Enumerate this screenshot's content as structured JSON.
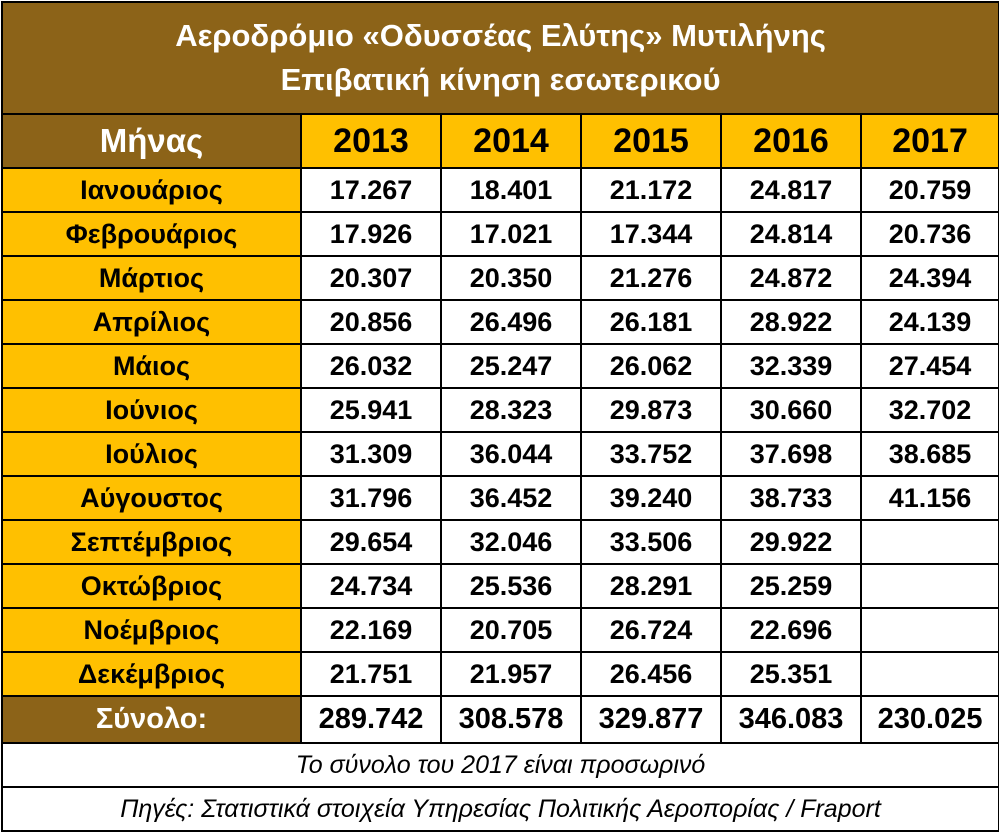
{
  "title_line1": "Αεροδρόμιο «Οδυσσέας Ελύτης» Μυτιλήνης",
  "title_line2": "Επιβατική κίνηση εσωτερικού",
  "header": {
    "month_label": "Μήνας",
    "years": [
      "2013",
      "2014",
      "2015",
      "2016",
      "2017"
    ]
  },
  "rows": [
    {
      "month": "Ιανουάριος",
      "values": [
        "17.267",
        "18.401",
        "21.172",
        "24.817",
        "20.759"
      ]
    },
    {
      "month": "Φεβρουάριος",
      "values": [
        "17.926",
        "17.021",
        "17.344",
        "24.814",
        "20.736"
      ]
    },
    {
      "month": "Μάρτιος",
      "values": [
        "20.307",
        "20.350",
        "21.276",
        "24.872",
        "24.394"
      ]
    },
    {
      "month": "Απρίλιος",
      "values": [
        "20.856",
        "26.496",
        "26.181",
        "28.922",
        "24.139"
      ]
    },
    {
      "month": "Μάιος",
      "values": [
        "26.032",
        "25.247",
        "26.062",
        "32.339",
        "27.454"
      ]
    },
    {
      "month": "Ιούνιος",
      "values": [
        "25.941",
        "28.323",
        "29.873",
        "30.660",
        "32.702"
      ]
    },
    {
      "month": "Ιούλιος",
      "values": [
        "31.309",
        "36.044",
        "33.752",
        "37.698",
        "38.685"
      ]
    },
    {
      "month": "Αύγουστος",
      "values": [
        "31.796",
        "36.452",
        "39.240",
        "38.733",
        "41.156"
      ]
    },
    {
      "month": "Σεπτέμβριος",
      "values": [
        "29.654",
        "32.046",
        "33.506",
        "29.922",
        ""
      ]
    },
    {
      "month": "Οκτώβριος",
      "values": [
        "24.734",
        "25.536",
        "28.291",
        "25.259",
        ""
      ]
    },
    {
      "month": "Νοέμβριος",
      "values": [
        "22.169",
        "20.705",
        "26.724",
        "22.696",
        ""
      ]
    },
    {
      "month": "Δεκέμβριος",
      "values": [
        "21.751",
        "21.957",
        "26.456",
        "25.351",
        ""
      ]
    }
  ],
  "total": {
    "label": "Σύνολο:",
    "values": [
      "289.742",
      "308.578",
      "329.877",
      "346.083",
      "230.025"
    ]
  },
  "note": "Το σύνολο του 2017 είναι προσωρινό",
  "source": "Πηγές: Στατιστικά στοιχεία Υπηρεσίας Πολιτικής Αεροπορίας / Fraport",
  "colors": {
    "header_brown": "#8c6318",
    "accent_gold": "#ffc000",
    "border": "#000000"
  }
}
